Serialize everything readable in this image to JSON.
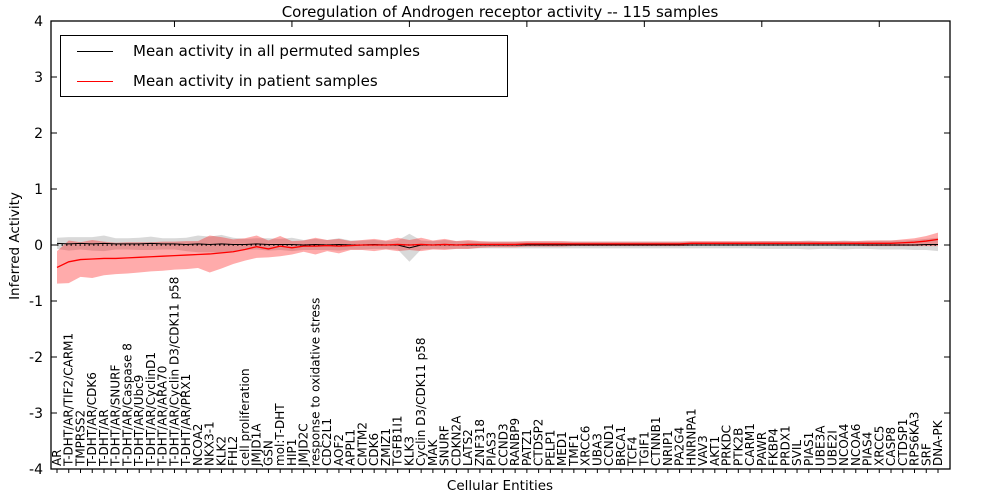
{
  "title": "Coregulation of Androgen receptor activity -- 115 samples",
  "axes": {
    "xlabel": "Cellular Entities",
    "ylabel": "Inferred Activity",
    "yticks": [
      4,
      3,
      2,
      1,
      0,
      -1,
      -2,
      -3,
      -4
    ],
    "ylim": [
      -4,
      4
    ]
  },
  "legend": {
    "entries": [
      {
        "label": "Mean activity in all permuted samples",
        "color": "#000000"
      },
      {
        "label": "Mean activity in patient samples",
        "color": "#ff0000"
      }
    ]
  },
  "colors": {
    "permuted_line": "#000000",
    "patient_line": "#ff0000",
    "permuted_band": "#000000",
    "patient_band": "#ff0000",
    "permuted_band_opacity": 0.15,
    "patient_band_opacity": 0.33,
    "zero_line": "#000000"
  },
  "chart_data": {
    "type": "line",
    "title": "Coregulation of Androgen receptor activity -- 115 samples",
    "xlabel": "Cellular Entities",
    "ylabel": "Inferred Activity",
    "ylim": [
      -4,
      4
    ],
    "grid": false,
    "legend_position": "upper left",
    "zero_line_style": "dotted",
    "categories": [
      "AR",
      "T-DHT/AR/TIF2/CARM1",
      "TMPRSS2",
      "T-DHT/AR/CDK6",
      "T-DHT/AR",
      "T-DHT/AR/SNURF",
      "T-DHT/AR/Caspase 8",
      "T-DHT/AR/Ubc9",
      "T-DHT/AR/CyclinD1",
      "T-DHT/AR/ARA70",
      "T-DHT/AR/Cyclin D3/CDK11 p58",
      "T-DHT/AR/PRX1",
      "NCOA2",
      "NKX3-1",
      "KLK2",
      "FHL2",
      "cell proliferation",
      "JMJD1A",
      "GSN",
      "mol:T-DHT",
      "HIP1",
      "JMJD2C",
      "response to oxidative stress",
      "CDC2L1",
      "AOF2",
      "APPL1",
      "CMTM2",
      "CDK6",
      "ZMIZ1",
      "TGFB1I1",
      "KLK3",
      "Cyclin D3/CDK11 p58",
      "MAK",
      "SNURF",
      "CDKN2A",
      "LATS2",
      "ZNF318",
      "PIAS3",
      "CCND3",
      "RANBP9",
      "PATZ1",
      "CTDSP2",
      "PELP1",
      "MED1",
      "TMF1",
      "XRCC6",
      "UBA3",
      "CCND1",
      "BRCA1",
      "TCF4",
      "TGIF1",
      "CTNNB1",
      "NRIP1",
      "PA2G4",
      "HNRNPA1",
      "VAV3",
      "AKT1",
      "PRKDC",
      "PTK2B",
      "CARM1",
      "PAWR",
      "FKBP4",
      "PRDX1",
      "SVIL",
      "PIAS1",
      "UBE3A",
      "UBE2I",
      "NCOA4",
      "NCOA6",
      "PIAS4",
      "XRCC5",
      "CASP8",
      "CTDSP1",
      "RPS6KA3",
      "SRF",
      "DNA-PK"
    ],
    "series": [
      {
        "name": "Mean activity in all permuted samples",
        "color": "#000000",
        "values": [
          0.03,
          0.02,
          0.03,
          0.02,
          0.03,
          0.02,
          0.02,
          0.02,
          0.03,
          0.02,
          0.02,
          0.01,
          0.02,
          0.01,
          0.02,
          0.01,
          0.01,
          0.02,
          0.01,
          0.01,
          0.01,
          0,
          0.01,
          0,
          0.01,
          0,
          0,
          0.01,
          0,
          0,
          -0.05,
          0,
          0,
          0.01,
          0,
          0,
          0,
          0,
          0,
          0,
          0,
          0,
          0,
          0,
          0,
          0,
          0,
          0,
          0,
          0,
          0,
          0,
          0,
          0,
          0,
          0,
          0,
          0,
          0,
          0,
          0,
          0,
          0,
          0,
          0,
          0,
          0,
          0,
          0,
          0,
          0,
          0,
          0,
          0,
          0.01,
          0.01
        ],
        "band_halfwidth": [
          0.1,
          0.12,
          0.11,
          0.12,
          0.14,
          0.1,
          0.1,
          0.11,
          0.12,
          0.1,
          0.1,
          0.12,
          0.15,
          0.14,
          0.16,
          0.12,
          0.1,
          0.1,
          0.11,
          0.1,
          0.12,
          0.09,
          0.1,
          0.09,
          0.11,
          0.08,
          0.08,
          0.08,
          0.07,
          0.08,
          0.25,
          0.08,
          0.07,
          0.08,
          0.07,
          0.07,
          0.06,
          0.06,
          0.06,
          0.06,
          0.06,
          0.06,
          0.06,
          0.06,
          0.06,
          0.06,
          0.06,
          0.06,
          0.06,
          0.06,
          0.06,
          0.06,
          0.06,
          0.06,
          0.06,
          0.06,
          0.06,
          0.06,
          0.06,
          0.06,
          0.07,
          0.07,
          0.07,
          0.07,
          0.08,
          0.07,
          0.07,
          0.08,
          0.07,
          0.07,
          0.08,
          0.08,
          0.08,
          0.09,
          0.1,
          0.12
        ]
      },
      {
        "name": "Mean activity in patient samples",
        "color": "#ff0000",
        "values": [
          -0.4,
          -0.3,
          -0.26,
          -0.25,
          -0.24,
          -0.24,
          -0.23,
          -0.22,
          -0.21,
          -0.2,
          -0.19,
          -0.18,
          -0.17,
          -0.16,
          -0.14,
          -0.12,
          -0.08,
          -0.03,
          -0.07,
          -0.02,
          -0.05,
          -0.02,
          -0.02,
          -0.01,
          -0.02,
          -0.01,
          0,
          0,
          0,
          0.01,
          0,
          0.01,
          0,
          0.01,
          0,
          0.01,
          0.01,
          0.01,
          0.01,
          0.01,
          0.02,
          0.02,
          0.02,
          0.02,
          0.02,
          0.02,
          0.02,
          0.02,
          0.02,
          0.02,
          0.02,
          0.02,
          0.02,
          0.02,
          0.03,
          0.03,
          0.03,
          0.03,
          0.03,
          0.03,
          0.03,
          0.03,
          0.03,
          0.03,
          0.03,
          0.03,
          0.03,
          0.03,
          0.03,
          0.03,
          0.03,
          0.03,
          0.04,
          0.05,
          0.07,
          0.1
        ],
        "band_halfwidth": [
          0.29,
          0.38,
          0.31,
          0.34,
          0.3,
          0.28,
          0.28,
          0.27,
          0.26,
          0.26,
          0.25,
          0.25,
          0.24,
          0.33,
          0.28,
          0.22,
          0.2,
          0.2,
          0.15,
          0.18,
          0.12,
          0.1,
          0.15,
          0.1,
          0.13,
          0.08,
          0.09,
          0.11,
          0.08,
          0.12,
          0.09,
          0.12,
          0.08,
          0.1,
          0.07,
          0.08,
          0.06,
          0.05,
          0.05,
          0.05,
          0.05,
          0.05,
          0.05,
          0.05,
          0.04,
          0.04,
          0.04,
          0.04,
          0.04,
          0.04,
          0.04,
          0.04,
          0.04,
          0.04,
          0.04,
          0.04,
          0.04,
          0.04,
          0.04,
          0.04,
          0.04,
          0.04,
          0.04,
          0.04,
          0.04,
          0.04,
          0.04,
          0.04,
          0.04,
          0.05,
          0.05,
          0.05,
          0.06,
          0.07,
          0.09,
          0.12
        ]
      }
    ]
  }
}
